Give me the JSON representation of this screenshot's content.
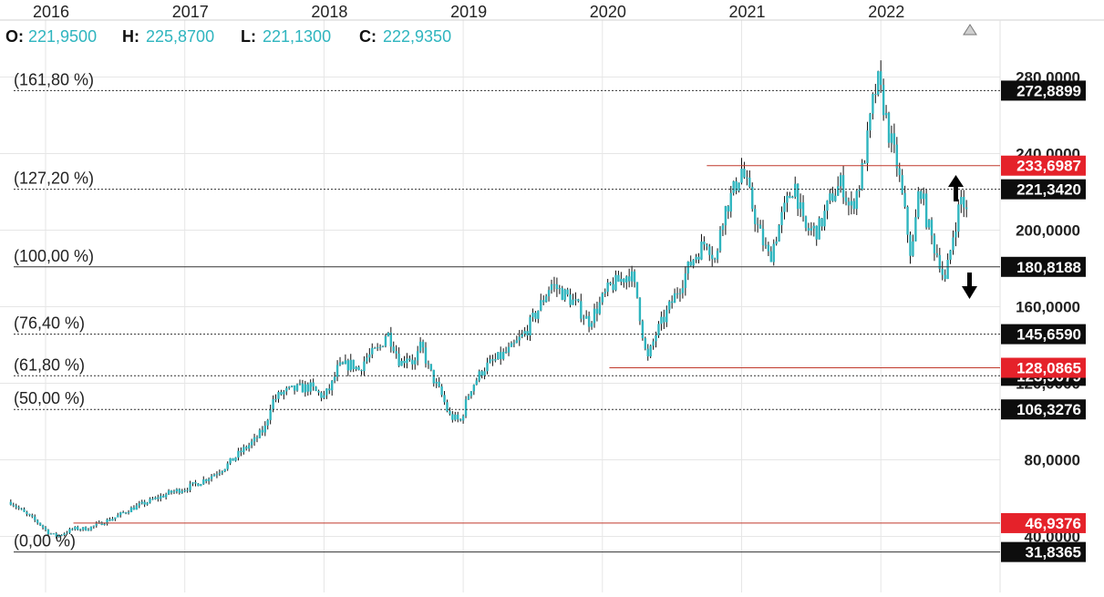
{
  "ohlc": {
    "o_key": "O:",
    "o_val": "221,9500",
    "h_key": "H:",
    "h_val": "225,8700",
    "l_key": "L:",
    "l_val": "221,1300",
    "c_key": "C:",
    "c_val": "222,9350"
  },
  "colors": {
    "candle": "#2fb5bf",
    "wick": "#111111",
    "support_line": "#c0392b",
    "tag_black": "#0d0d0d",
    "tag_red": "#e5222a",
    "grid": "#e6e6e6"
  },
  "chart_data": {
    "type": "candlestick",
    "x_ticks": [
      "2016",
      "2017",
      "2018",
      "2019",
      "2020",
      "2021",
      "2022"
    ],
    "y_ticks": [
      "40,0000",
      "80,0000",
      "120,0000",
      "160,0000",
      "200,0000",
      "240,0000",
      "280,0000"
    ],
    "ylim": [
      28,
      285
    ],
    "xlim": [
      2015.75,
      2022.75
    ],
    "grid": true,
    "fib_levels": [
      {
        "label": "(161,80 %)",
        "value": 272.8899,
        "tag": "272,8899"
      },
      {
        "label": "(127,20 %)",
        "value": 221.342,
        "tag": "221,3420"
      },
      {
        "label": "(100,00 %)",
        "value": 180.8188,
        "tag": "180,8188"
      },
      {
        "label": "(76,40 %)",
        "value": 145.659,
        "tag": "145,6590"
      },
      {
        "label": "(61,80 %)",
        "value": 123.9079,
        "tag": "123,9079"
      },
      {
        "label": "(50,00 %)",
        "value": 106.3276,
        "tag": "106,3276"
      },
      {
        "label": "(0,00 %)",
        "value": 31.8365,
        "tag": "31,8365"
      }
    ],
    "red_lines": [
      {
        "value": 233.6987,
        "tag": "233,6987",
        "x_start": 2020.75
      },
      {
        "value": 128.0865,
        "tag": "128,0865",
        "x_start": 2020.05
      },
      {
        "value": 46.9376,
        "tag": "46,9376",
        "x_start": 2016.2
      }
    ],
    "price_path": [
      [
        2015.75,
        58
      ],
      [
        2015.85,
        52
      ],
      [
        2015.95,
        47
      ],
      [
        2016.02,
        42
      ],
      [
        2016.08,
        40
      ],
      [
        2016.2,
        44
      ],
      [
        2016.3,
        44
      ],
      [
        2016.4,
        47
      ],
      [
        2016.5,
        50
      ],
      [
        2016.6,
        54
      ],
      [
        2016.7,
        57
      ],
      [
        2016.8,
        60
      ],
      [
        2016.9,
        63
      ],
      [
        2017.0,
        65
      ],
      [
        2017.1,
        68
      ],
      [
        2017.2,
        72
      ],
      [
        2017.3,
        77
      ],
      [
        2017.4,
        84
      ],
      [
        2017.5,
        90
      ],
      [
        2017.58,
        97
      ],
      [
        2017.62,
        110
      ],
      [
        2017.7,
        115
      ],
      [
        2017.8,
        117
      ],
      [
        2017.9,
        118
      ],
      [
        2017.95,
        115
      ],
      [
        2018.0,
        113
      ],
      [
        2018.05,
        118
      ],
      [
        2018.1,
        128
      ],
      [
        2018.2,
        130
      ],
      [
        2018.25,
        127
      ],
      [
        2018.3,
        133
      ],
      [
        2018.4,
        138
      ],
      [
        2018.45,
        147
      ],
      [
        2018.5,
        140
      ],
      [
        2018.55,
        130
      ],
      [
        2018.6,
        135
      ],
      [
        2018.65,
        130
      ],
      [
        2018.7,
        140
      ],
      [
        2018.75,
        128
      ],
      [
        2018.8,
        120
      ],
      [
        2018.85,
        113
      ],
      [
        2018.9,
        103
      ],
      [
        2018.98,
        100
      ],
      [
        2019.05,
        117
      ],
      [
        2019.15,
        128
      ],
      [
        2019.25,
        133
      ],
      [
        2019.35,
        138
      ],
      [
        2019.45,
        147
      ],
      [
        2019.55,
        160
      ],
      [
        2019.63,
        172
      ],
      [
        2019.7,
        168
      ],
      [
        2019.8,
        162
      ],
      [
        2019.9,
        152
      ],
      [
        2019.97,
        160
      ],
      [
        2020.05,
        170
      ],
      [
        2020.15,
        175
      ],
      [
        2020.2,
        178
      ],
      [
        2020.25,
        165
      ],
      [
        2020.32,
        131
      ],
      [
        2020.38,
        145
      ],
      [
        2020.45,
        155
      ],
      [
        2020.55,
        170
      ],
      [
        2020.65,
        185
      ],
      [
        2020.75,
        195
      ],
      [
        2020.82,
        182
      ],
      [
        2020.85,
        205
      ],
      [
        2020.95,
        222
      ],
      [
        2021.0,
        232
      ],
      [
        2021.05,
        220
      ],
      [
        2021.12,
        200
      ],
      [
        2021.2,
        185
      ],
      [
        2021.28,
        205
      ],
      [
        2021.38,
        225
      ],
      [
        2021.45,
        200
      ],
      [
        2021.55,
        200
      ],
      [
        2021.65,
        218
      ],
      [
        2021.72,
        225
      ],
      [
        2021.78,
        210
      ],
      [
        2021.85,
        225
      ],
      [
        2021.9,
        245
      ],
      [
        2021.95,
        270
      ],
      [
        2021.98,
        277
      ],
      [
        2022.02,
        265
      ],
      [
        2022.06,
        250
      ],
      [
        2022.12,
        233
      ],
      [
        2022.18,
        205
      ],
      [
        2022.22,
        185
      ],
      [
        2022.28,
        225
      ],
      [
        2022.33,
        205
      ],
      [
        2022.38,
        192
      ],
      [
        2022.42,
        185
      ],
      [
        2022.46,
        172
      ],
      [
        2022.52,
        198
      ],
      [
        2022.58,
        218
      ],
      [
        2022.63,
        205
      ],
      [
        2022.68,
        198
      ],
      [
        2022.72,
        205
      ]
    ]
  }
}
